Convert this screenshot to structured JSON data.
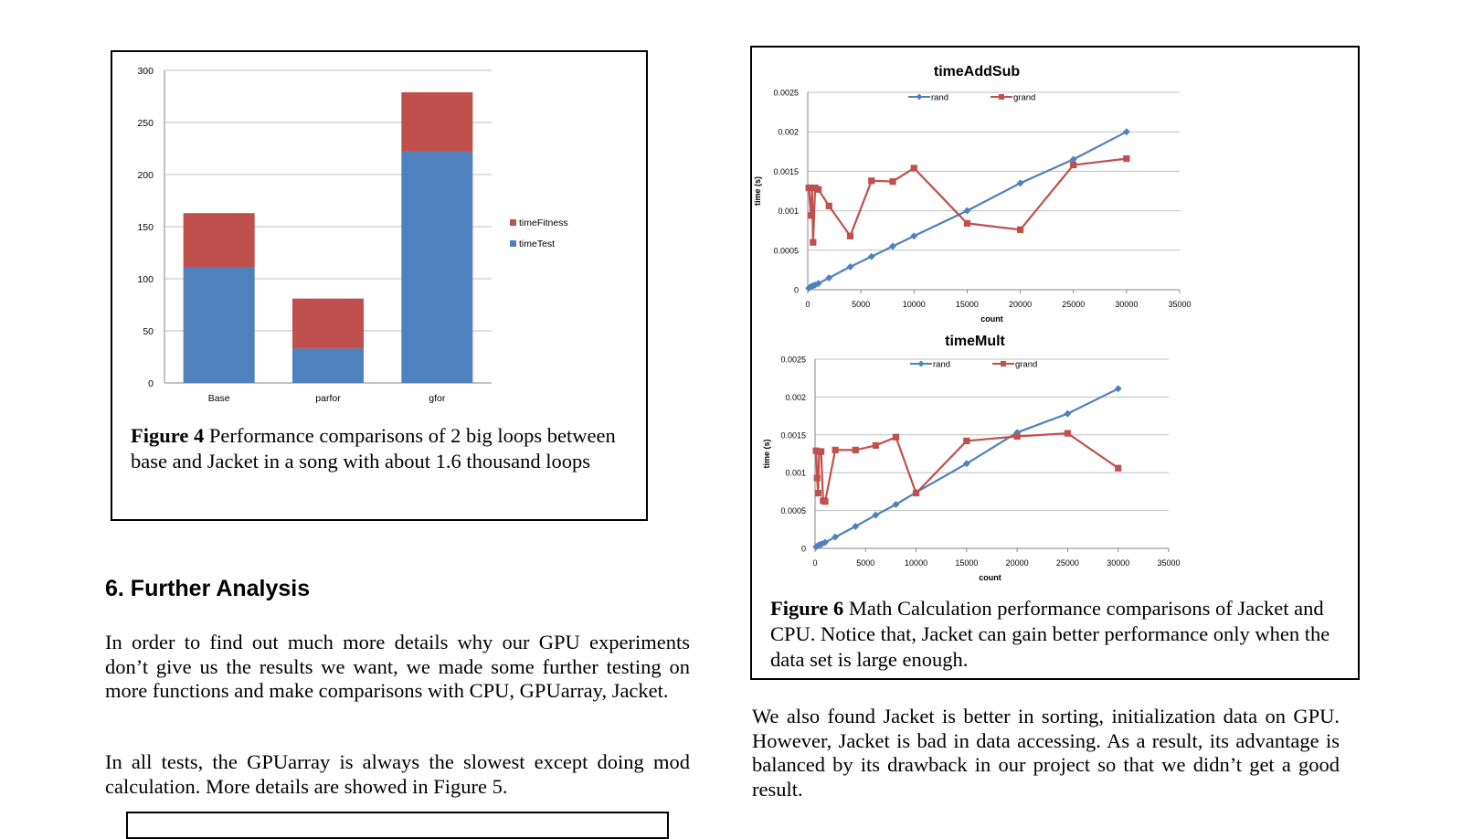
{
  "figure4": {
    "caption_label": "Figure 4",
    "caption_text": " Performance comparisons of 2 big loops between base and Jacket in a song with about 1.6 thousand loops"
  },
  "figure6": {
    "caption_label": "Figure 6",
    "caption_text": " Math Calculation performance comparisons of Jacket and CPU. Notice that, Jacket can gain better performance only when the data set is large enough."
  },
  "section": {
    "heading": "6. Further Analysis"
  },
  "paragraphs": {
    "p1": "In order to find out much more details why our GPU experiments don’t give us the results we want, we made some further testing on more functions and make comparisons with CPU, GPUarray, Jacket.",
    "p2": "In all tests, the GPUarray is always the slowest except doing mod calculation. More details are showed in Figure 5.",
    "p3": "We also found Jacket is better in sorting, initialization data on GPU. However, Jacket is bad in data accessing. As a result, its advantage is balanced by its drawback in our project so that we didn’t get a good result."
  },
  "colors": {
    "blue": "#4f81bd",
    "red": "#c0504d",
    "grid": "#bfbfbf",
    "axis": "#868686"
  },
  "chart_data": [
    {
      "id": "fig4",
      "type": "bar",
      "stacked": true,
      "title": "",
      "categories": [
        "Base",
        "parfor",
        "gfor"
      ],
      "series": [
        {
          "name": "timeTest",
          "values": [
            111,
            33,
            222
          ]
        },
        {
          "name": "timeFitness",
          "values": [
            52,
            48,
            57
          ]
        }
      ],
      "ylim": [
        0,
        300
      ],
      "yticks": [
        0,
        50,
        100,
        150,
        200,
        250,
        300
      ],
      "legend": "right",
      "grid": true
    },
    {
      "id": "timeAddSub",
      "type": "line",
      "title": "timeAddSub",
      "xlabel": "count",
      "ylabel": "time (s)",
      "xlim": [
        0,
        35000
      ],
      "ylim": [
        0,
        0.0025
      ],
      "xticks": [
        0,
        5000,
        10000,
        15000,
        20000,
        25000,
        30000,
        35000
      ],
      "yticks": [
        0,
        0.0005,
        0.001,
        0.0015,
        0.002,
        0.0025
      ],
      "ytick_labels": [
        "0",
        "0.0005",
        "0.001",
        "0.0015",
        "0.002",
        "0.0025"
      ],
      "legend": "top",
      "series": [
        {
          "name": "rand",
          "points": [
            [
              100,
              2e-05
            ],
            [
              300,
              4e-05
            ],
            [
              500,
              5e-05
            ],
            [
              700,
              6e-05
            ],
            [
              1000,
              8e-05
            ],
            [
              2000,
              0.00015
            ],
            [
              4000,
              0.00029
            ],
            [
              6000,
              0.00042
            ],
            [
              8000,
              0.00055
            ],
            [
              10000,
              0.00068
            ],
            [
              15000,
              0.001
            ],
            [
              20000,
              0.00135
            ],
            [
              25000,
              0.00165
            ],
            [
              30000,
              0.002
            ]
          ]
        },
        {
          "name": "grand",
          "points": [
            [
              100,
              0.00129
            ],
            [
              300,
              0.00094
            ],
            [
              400,
              0.00129
            ],
            [
              500,
              0.0006
            ],
            [
              700,
              0.00129
            ],
            [
              1000,
              0.00127
            ],
            [
              2000,
              0.00106
            ],
            [
              4000,
              0.00068
            ],
            [
              6000,
              0.00138
            ],
            [
              8000,
              0.00137
            ],
            [
              10000,
              0.00154
            ],
            [
              15000,
              0.00084
            ],
            [
              20000,
              0.00076
            ],
            [
              25000,
              0.00158
            ],
            [
              30000,
              0.00166
            ]
          ]
        }
      ]
    },
    {
      "id": "timeMult",
      "type": "line",
      "title": "timeMult",
      "xlabel": "count",
      "ylabel": "time (s)",
      "xlim": [
        0,
        35000
      ],
      "ylim": [
        0,
        0.0025
      ],
      "xticks": [
        0,
        5000,
        10000,
        15000,
        20000,
        25000,
        30000,
        35000
      ],
      "yticks": [
        0,
        0.0005,
        0.001,
        0.0015,
        0.002,
        0.0025
      ],
      "ytick_labels": [
        "0",
        "0.0005",
        "0.001",
        "0.0015",
        "0.002",
        "0.0025"
      ],
      "legend": "top",
      "series": [
        {
          "name": "rand",
          "points": [
            [
              100,
              2e-05
            ],
            [
              300,
              4e-05
            ],
            [
              500,
              5e-05
            ],
            [
              700,
              6e-05
            ],
            [
              1000,
              8e-05
            ],
            [
              2000,
              0.00015
            ],
            [
              4000,
              0.00029
            ],
            [
              6000,
              0.00044
            ],
            [
              8000,
              0.00058
            ],
            [
              10000,
              0.00074
            ],
            [
              15000,
              0.00112
            ],
            [
              20000,
              0.00153
            ],
            [
              25000,
              0.00178
            ],
            [
              30000,
              0.00211
            ]
          ]
        },
        {
          "name": "grand",
          "points": [
            [
              100,
              0.00129
            ],
            [
              200,
              0.00093
            ],
            [
              300,
              0.00073
            ],
            [
              400,
              0.00128
            ],
            [
              600,
              0.00128
            ],
            [
              800,
              0.00063
            ],
            [
              1000,
              0.00062
            ],
            [
              2000,
              0.0013
            ],
            [
              4000,
              0.0013
            ],
            [
              6000,
              0.00136
            ],
            [
              8000,
              0.00147
            ],
            [
              10000,
              0.00073
            ],
            [
              15000,
              0.00142
            ],
            [
              20000,
              0.00148
            ],
            [
              25000,
              0.00152
            ],
            [
              30000,
              0.00106
            ]
          ]
        }
      ]
    }
  ]
}
